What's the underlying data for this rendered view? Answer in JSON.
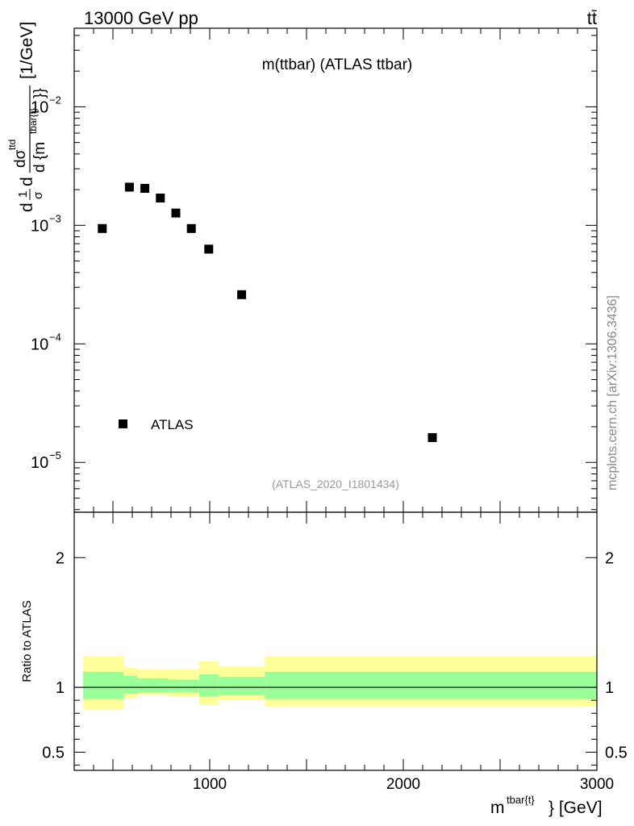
{
  "header": {
    "energy_label": "13000 GeV pp",
    "process_label": "tt̄"
  },
  "side_text": "mcplots.cern.ch [arXiv:1306.3436]",
  "colors": {
    "band_outer": "#ffff99",
    "band_inner": "#99ff99",
    "marker": "#000000",
    "ref_line": "#000000",
    "analysis_text": "#999999"
  },
  "chart_data": [
    {
      "type": "scatter",
      "title": "m(ttbar) (ATLAS ttbar)",
      "analysis_id": "(ATLAS_2020_I1801434)",
      "ylabel": "d 1/σ dσ^ttd/d{m^tbar{t}} [1/GeV]",
      "ylabel_parts": {
        "lead": "d",
        "frac1_num": "1",
        "frac1_den": "σ",
        "d": "d",
        "frac2_num": "dσ",
        "frac2_num_sup": "ttd",
        "frac2_den": "d {m",
        "frac2_den_sup": "tbar{t}",
        "frac2_den_close": "}}",
        "units": "[1/GeV]"
      },
      "yscale": "log",
      "xlim": [
        300,
        3000
      ],
      "ylim": [
        3.8e-06,
        0.046
      ],
      "y_ticks": [
        {
          "value": 1e-05,
          "base": "10",
          "exp": "−5"
        },
        {
          "value": 0.0001,
          "base": "10",
          "exp": "−4"
        },
        {
          "value": 0.001,
          "base": "10",
          "exp": "−3"
        },
        {
          "value": 0.01,
          "base": "10",
          "exp": "−2"
        }
      ],
      "legend": {
        "entries": [
          "ATLAS"
        ],
        "placement": "bottom-left"
      },
      "series": [
        {
          "name": "ATLAS",
          "marker": "square",
          "x": [
            445,
            585,
            665,
            745,
            825,
            905,
            995,
            1165,
            2150
          ],
          "y": [
            0.00094,
            0.0021,
            0.00205,
            0.0017,
            0.00127,
            0.00094,
            0.00063,
            0.00026,
            1.62e-05
          ]
        }
      ]
    },
    {
      "type": "area",
      "ylabel": "Ratio to ATLAS",
      "xlabel_parts": {
        "base": "m",
        "sup": "tbar{t}",
        "tail": "} [GeV]"
      },
      "xlim": [
        300,
        3000
      ],
      "ylim": [
        0.36,
        2.35
      ],
      "x_ticks": [
        {
          "value": 1000,
          "label": "1000"
        },
        {
          "value": 2000,
          "label": "2000"
        },
        {
          "value": 3000,
          "label": "3000"
        }
      ],
      "y_ticks": [
        {
          "value": 0.5,
          "label": "0.5"
        },
        {
          "value": 1,
          "label": "1"
        },
        {
          "value": 2,
          "label": "2"
        }
      ],
      "reference_line": 1.0,
      "bins": [
        {
          "x0": 345,
          "x1": 555,
          "outer": [
            0.83,
            1.24
          ],
          "inner": [
            0.91,
            1.12
          ]
        },
        {
          "x0": 555,
          "x1": 625,
          "outer": [
            0.92,
            1.15
          ],
          "inner": [
            0.95,
            1.09
          ]
        },
        {
          "x0": 625,
          "x1": 705,
          "outer": [
            0.94,
            1.14
          ],
          "inner": [
            0.96,
            1.07
          ]
        },
        {
          "x0": 705,
          "x1": 785,
          "outer": [
            0.94,
            1.14
          ],
          "inner": [
            0.96,
            1.07
          ]
        },
        {
          "x0": 785,
          "x1": 865,
          "outer": [
            0.93,
            1.14
          ],
          "inner": [
            0.96,
            1.06
          ]
        },
        {
          "x0": 865,
          "x1": 945,
          "outer": [
            0.93,
            1.14
          ],
          "inner": [
            0.96,
            1.06
          ]
        },
        {
          "x0": 945,
          "x1": 1045,
          "outer": [
            0.87,
            1.2
          ],
          "inner": [
            0.93,
            1.1
          ]
        },
        {
          "x0": 1045,
          "x1": 1285,
          "outer": [
            0.9,
            1.16
          ],
          "inner": [
            0.94,
            1.08
          ]
        },
        {
          "x0": 1285,
          "x1": 3000,
          "outer": [
            0.85,
            1.24
          ],
          "inner": [
            0.91,
            1.12
          ]
        }
      ]
    }
  ]
}
